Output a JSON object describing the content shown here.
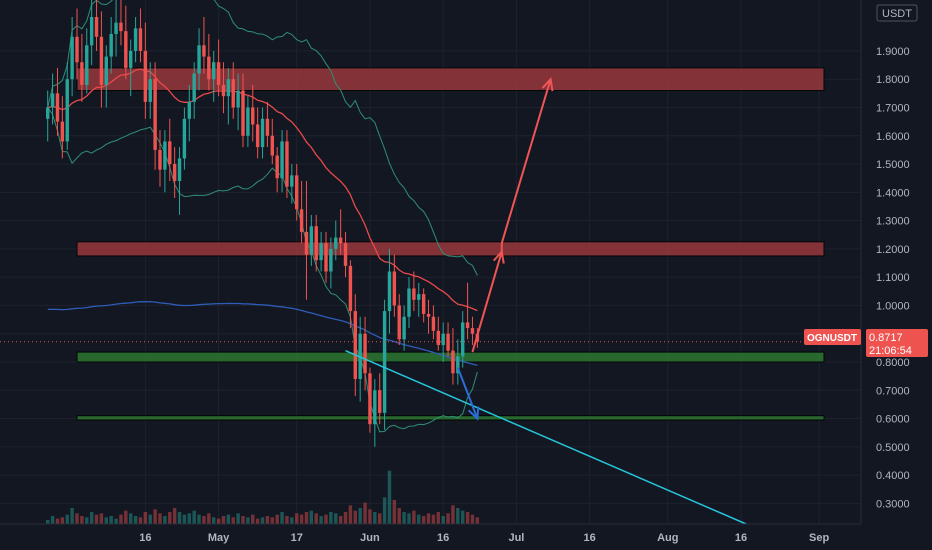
{
  "symbol": "OGNUSDT",
  "price": "0.8717",
  "countdown": "21:06:54",
  "currency": "USDT",
  "colors": {
    "background": "#131722",
    "up": "#26a69a",
    "down": "#ef5350",
    "zone_red": "#a93b3e",
    "zone_green": "#2e7d32",
    "ema": "#e84a4a",
    "long_ma": "#2f5cb8",
    "bb": "#2f8f75",
    "trendline": "#26c6da",
    "arrow_up": "#f05555",
    "arrow_down": "#2a6fd6"
  },
  "chart_data": {
    "type": "candlestick",
    "symbol": "OGNUSDT",
    "timeframe": "1D",
    "y_axis": {
      "unit": "USDT",
      "range": [
        0.22,
        2.02
      ],
      "ticks": [
        "0.3000",
        "0.4000",
        "0.5000",
        "0.6000",
        "0.7000",
        "0.8000",
        "0.9000",
        "1.0000",
        "1.1000",
        "1.2000",
        "1.3000",
        "1.4000",
        "1.5000",
        "1.6000",
        "1.7000",
        "1.8000",
        "1.9000"
      ]
    },
    "x_axis": {
      "ticks": [
        "16",
        "May",
        "17",
        "Jun",
        "16",
        "Jul",
        "16",
        "Aug",
        "16",
        "Sep"
      ],
      "range": [
        "2021-04-02",
        "2021-09-02"
      ]
    },
    "last_price": 0.8717,
    "zones": [
      {
        "kind": "resistance",
        "low": 1.76,
        "high": 1.84
      },
      {
        "kind": "resistance",
        "low": 1.175,
        "high": 1.225
      },
      {
        "kind": "support",
        "low": 0.8,
        "high": 0.835
      },
      {
        "kind": "support",
        "low": 0.595,
        "high": 0.61
      }
    ],
    "projection_up": [
      [
        "2021-06-22",
        0.835
      ],
      [
        "2021-06-28",
        1.19
      ],
      [
        "2021-06-28",
        1.22
      ],
      [
        "2021-07-08",
        1.8
      ]
    ],
    "projection_down": [
      [
        "2021-06-19",
        0.78
      ],
      [
        "2021-06-23",
        0.6
      ]
    ],
    "trendline": [
      [
        "2021-05-27",
        0.84
      ],
      [
        "2021-08-18",
        0.22
      ]
    ],
    "candles": [
      [
        "2021-03-27",
        1.66,
        1.76,
        1.58,
        1.7
      ],
      [
        "2021-03-28",
        1.7,
        1.82,
        1.64,
        1.75
      ],
      [
        "2021-03-29",
        1.75,
        1.84,
        1.6,
        1.65
      ],
      [
        "2021-03-30",
        1.65,
        1.74,
        1.52,
        1.58
      ],
      [
        "2021-03-31",
        1.58,
        1.86,
        1.55,
        1.8
      ],
      [
        "2021-04-01",
        1.8,
        2.02,
        1.74,
        1.95
      ],
      [
        "2021-04-02",
        1.95,
        2.05,
        1.8,
        1.86
      ],
      [
        "2021-04-03",
        1.86,
        1.96,
        1.72,
        1.78
      ],
      [
        "2021-04-04",
        1.78,
        1.98,
        1.75,
        1.92
      ],
      [
        "2021-04-05",
        1.92,
        2.1,
        1.85,
        2.02
      ],
      [
        "2021-04-06",
        2.02,
        2.12,
        1.9,
        1.95
      ],
      [
        "2021-04-07",
        1.95,
        2.04,
        1.7,
        1.78
      ],
      [
        "2021-04-08",
        1.78,
        1.92,
        1.7,
        1.88
      ],
      [
        "2021-04-09",
        1.88,
        2.02,
        1.82,
        1.96
      ],
      [
        "2021-04-10",
        1.96,
        2.08,
        1.88,
        2.0
      ],
      [
        "2021-04-11",
        2.0,
        2.1,
        1.92,
        1.97
      ],
      [
        "2021-04-12",
        1.97,
        2.06,
        1.8,
        1.84
      ],
      [
        "2021-04-13",
        1.84,
        1.94,
        1.74,
        1.9
      ],
      [
        "2021-04-14",
        1.9,
        2.02,
        1.86,
        1.98
      ],
      [
        "2021-04-15",
        1.98,
        2.05,
        1.86,
        1.9
      ],
      [
        "2021-04-16",
        1.9,
        2.0,
        1.66,
        1.72
      ],
      [
        "2021-04-17",
        1.72,
        1.86,
        1.66,
        1.8
      ],
      [
        "2021-04-18",
        1.8,
        1.86,
        1.48,
        1.55
      ],
      [
        "2021-04-19",
        1.55,
        1.62,
        1.42,
        1.48
      ],
      [
        "2021-04-20",
        1.48,
        1.62,
        1.4,
        1.58
      ],
      [
        "2021-04-21",
        1.58,
        1.66,
        1.44,
        1.5
      ],
      [
        "2021-04-22",
        1.5,
        1.56,
        1.38,
        1.44
      ],
      [
        "2021-04-23",
        1.44,
        1.56,
        1.32,
        1.52
      ],
      [
        "2021-04-24",
        1.52,
        1.7,
        1.48,
        1.66
      ],
      [
        "2021-04-25",
        1.66,
        1.78,
        1.58,
        1.72
      ],
      [
        "2021-04-26",
        1.72,
        1.86,
        1.66,
        1.82
      ],
      [
        "2021-04-27",
        1.82,
        1.98,
        1.76,
        1.92
      ],
      [
        "2021-04-28",
        1.92,
        2.02,
        1.82,
        1.88
      ],
      [
        "2021-04-29",
        1.88,
        1.96,
        1.76,
        1.8
      ],
      [
        "2021-04-30",
        1.8,
        1.9,
        1.72,
        1.86
      ],
      [
        "2021-05-01",
        1.86,
        1.94,
        1.74,
        1.78
      ],
      [
        "2021-05-02",
        1.78,
        1.86,
        1.68,
        1.74
      ],
      [
        "2021-05-03",
        1.74,
        1.84,
        1.64,
        1.8
      ],
      [
        "2021-05-04",
        1.8,
        1.86,
        1.66,
        1.7
      ],
      [
        "2021-05-05",
        1.7,
        1.82,
        1.62,
        1.76
      ],
      [
        "2021-05-06",
        1.76,
        1.82,
        1.56,
        1.6
      ],
      [
        "2021-05-07",
        1.6,
        1.74,
        1.56,
        1.7
      ],
      [
        "2021-05-08",
        1.7,
        1.78,
        1.58,
        1.64
      ],
      [
        "2021-05-09",
        1.64,
        1.7,
        1.52,
        1.56
      ],
      [
        "2021-05-10",
        1.56,
        1.7,
        1.52,
        1.66
      ],
      [
        "2021-05-11",
        1.66,
        1.72,
        1.56,
        1.6
      ],
      [
        "2021-05-12",
        1.6,
        1.66,
        1.5,
        1.53
      ],
      [
        "2021-05-13",
        1.53,
        1.56,
        1.4,
        1.45
      ],
      [
        "2021-05-14",
        1.45,
        1.62,
        1.4,
        1.58
      ],
      [
        "2021-05-15",
        1.58,
        1.62,
        1.38,
        1.42
      ],
      [
        "2021-05-16",
        1.42,
        1.5,
        1.36,
        1.46
      ],
      [
        "2021-05-17",
        1.46,
        1.5,
        1.3,
        1.34
      ],
      [
        "2021-05-18",
        1.34,
        1.44,
        1.22,
        1.26
      ],
      [
        "2021-05-19",
        1.26,
        1.44,
        1.02,
        1.18
      ],
      [
        "2021-05-20",
        1.18,
        1.32,
        1.14,
        1.28
      ],
      [
        "2021-05-21",
        1.28,
        1.32,
        1.12,
        1.16
      ],
      [
        "2021-05-22",
        1.16,
        1.26,
        1.12,
        1.22
      ],
      [
        "2021-05-23",
        1.22,
        1.26,
        1.08,
        1.12
      ],
      [
        "2021-05-24",
        1.12,
        1.24,
        1.06,
        1.2
      ],
      [
        "2021-05-25",
        1.2,
        1.3,
        1.16,
        1.24
      ],
      [
        "2021-05-26",
        1.24,
        1.34,
        1.18,
        1.22
      ],
      [
        "2021-05-27",
        1.22,
        1.26,
        1.1,
        1.14
      ],
      [
        "2021-05-28",
        1.14,
        1.16,
        0.92,
        0.98
      ],
      [
        "2021-05-29",
        0.98,
        1.04,
        0.68,
        0.74
      ],
      [
        "2021-05-30",
        0.74,
        0.96,
        0.66,
        0.9
      ],
      [
        "2021-05-31",
        0.9,
        0.96,
        0.7,
        0.76
      ],
      [
        "2021-06-01",
        0.76,
        0.78,
        0.55,
        0.58
      ],
      [
        "2021-06-02",
        0.58,
        0.74,
        0.5,
        0.7
      ],
      [
        "2021-06-03",
        0.7,
        0.76,
        0.58,
        0.62
      ],
      [
        "2021-06-04",
        0.62,
        1.02,
        0.56,
        0.98
      ],
      [
        "2021-06-05",
        0.98,
        1.2,
        0.9,
        1.12
      ],
      [
        "2021-06-06",
        1.12,
        1.18,
        0.96,
        1.0
      ],
      [
        "2021-06-07",
        1.0,
        1.04,
        0.86,
        0.88
      ],
      [
        "2021-06-08",
        0.88,
        1.0,
        0.84,
        0.96
      ],
      [
        "2021-06-09",
        0.96,
        1.1,
        0.92,
        1.06
      ],
      [
        "2021-06-10",
        1.06,
        1.12,
        0.98,
        1.02
      ],
      [
        "2021-06-11",
        1.02,
        1.08,
        0.96,
        1.04
      ],
      [
        "2021-06-12",
        1.04,
        1.06,
        0.94,
        0.97
      ],
      [
        "2021-06-13",
        0.97,
        1.02,
        0.9,
        0.96
      ],
      [
        "2021-06-14",
        0.96,
        1.0,
        0.88,
        0.91
      ],
      [
        "2021-06-15",
        0.91,
        0.96,
        0.84,
        0.86
      ],
      [
        "2021-06-16",
        0.86,
        0.94,
        0.8,
        0.9
      ],
      [
        "2021-06-17",
        0.9,
        0.94,
        0.82,
        0.84
      ],
      [
        "2021-06-18",
        0.84,
        0.92,
        0.72,
        0.76
      ],
      [
        "2021-06-19",
        0.76,
        0.88,
        0.72,
        0.82
      ],
      [
        "2021-06-20",
        0.82,
        0.98,
        0.78,
        0.94
      ],
      [
        "2021-06-21",
        0.94,
        1.08,
        0.88,
        0.92
      ],
      [
        "2021-06-22",
        0.92,
        0.96,
        0.86,
        0.9
      ],
      [
        "2021-06-23",
        0.9,
        0.92,
        0.85,
        0.8717
      ]
    ],
    "volume_range": [
      0,
      60
    ],
    "volumes": [
      3,
      6,
      4,
      5,
      7,
      12,
      8,
      6,
      5,
      9,
      7,
      8,
      5,
      6,
      4,
      7,
      10,
      8,
      6,
      5,
      9,
      7,
      11,
      8,
      6,
      9,
      12,
      9,
      7,
      8,
      10,
      7,
      6,
      8,
      5,
      4,
      6,
      7,
      5,
      8,
      6,
      5,
      7,
      4,
      5,
      6,
      5,
      7,
      9,
      6,
      5,
      8,
      7,
      9,
      10,
      8,
      6,
      7,
      9,
      8,
      6,
      9,
      14,
      10,
      12,
      16,
      11,
      9,
      8,
      20,
      40,
      18,
      12,
      9,
      8,
      10,
      7,
      6,
      8,
      7,
      9,
      6,
      8,
      14,
      12,
      10,
      9,
      7,
      5
    ]
  }
}
